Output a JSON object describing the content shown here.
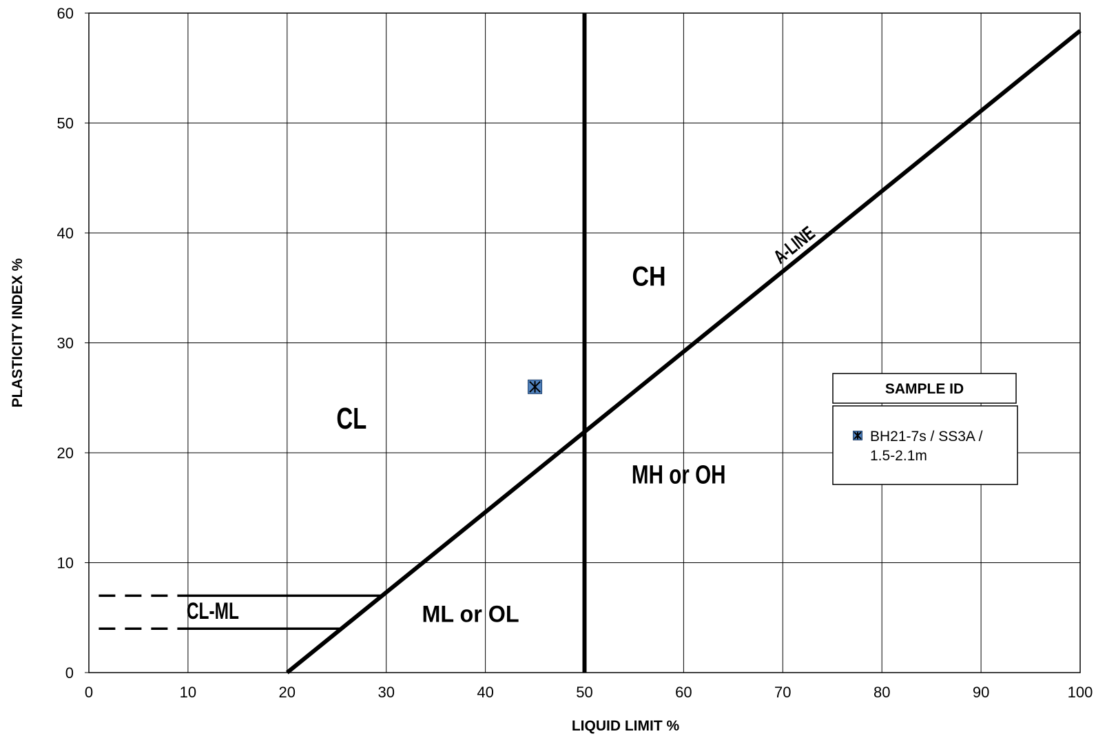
{
  "chart_data": {
    "type": "scatter",
    "xlabel": "LIQUID LIMIT %",
    "ylabel": "PLASTICITY INDEX %",
    "xlim": [
      0,
      100
    ],
    "ylim": [
      0,
      60
    ],
    "x_ticks": [
      0,
      10,
      20,
      30,
      40,
      50,
      60,
      70,
      80,
      90,
      100
    ],
    "y_ticks": [
      0,
      10,
      20,
      30,
      40,
      50,
      60
    ],
    "grid": true,
    "legend_position": "right",
    "legend_title": "SAMPLE ID",
    "series": [
      {
        "name": "BH21-7s / SS3A / 1.5-2.1m",
        "legend_lines": [
          "BH21-7s / SS3A /",
          "1.5-2.1m"
        ],
        "marker": "square-with-star",
        "color": "#4f81bd",
        "points": [
          {
            "x": 45,
            "y": 26
          }
        ]
      }
    ],
    "reference_lines": {
      "a_line": {
        "label": "A-LINE",
        "x": [
          20,
          100
        ],
        "y": [
          0,
          58.4
        ]
      },
      "ll50_line": {
        "x": [
          50,
          50
        ],
        "y": [
          0,
          60
        ]
      },
      "pi7_line": {
        "x_dashed": [
          1,
          9
        ],
        "x_solid": [
          9,
          29.6
        ],
        "y": 7
      },
      "pi4_line": {
        "x_dashed": [
          1,
          9
        ],
        "x_solid": [
          9,
          25.5
        ],
        "y": 4
      }
    },
    "zones": [
      {
        "label": "CH",
        "x": 56.5,
        "y": 35.2
      },
      {
        "label": "CL",
        "x": 26.5,
        "y": 22.2
      },
      {
        "label": "MH or OH",
        "x": 59.5,
        "y": 17.2
      },
      {
        "label": "ML or OL",
        "x": 38.5,
        "y": 4.6
      },
      {
        "label": "CL-ML",
        "x": 12.5,
        "y": 4.9
      }
    ]
  }
}
